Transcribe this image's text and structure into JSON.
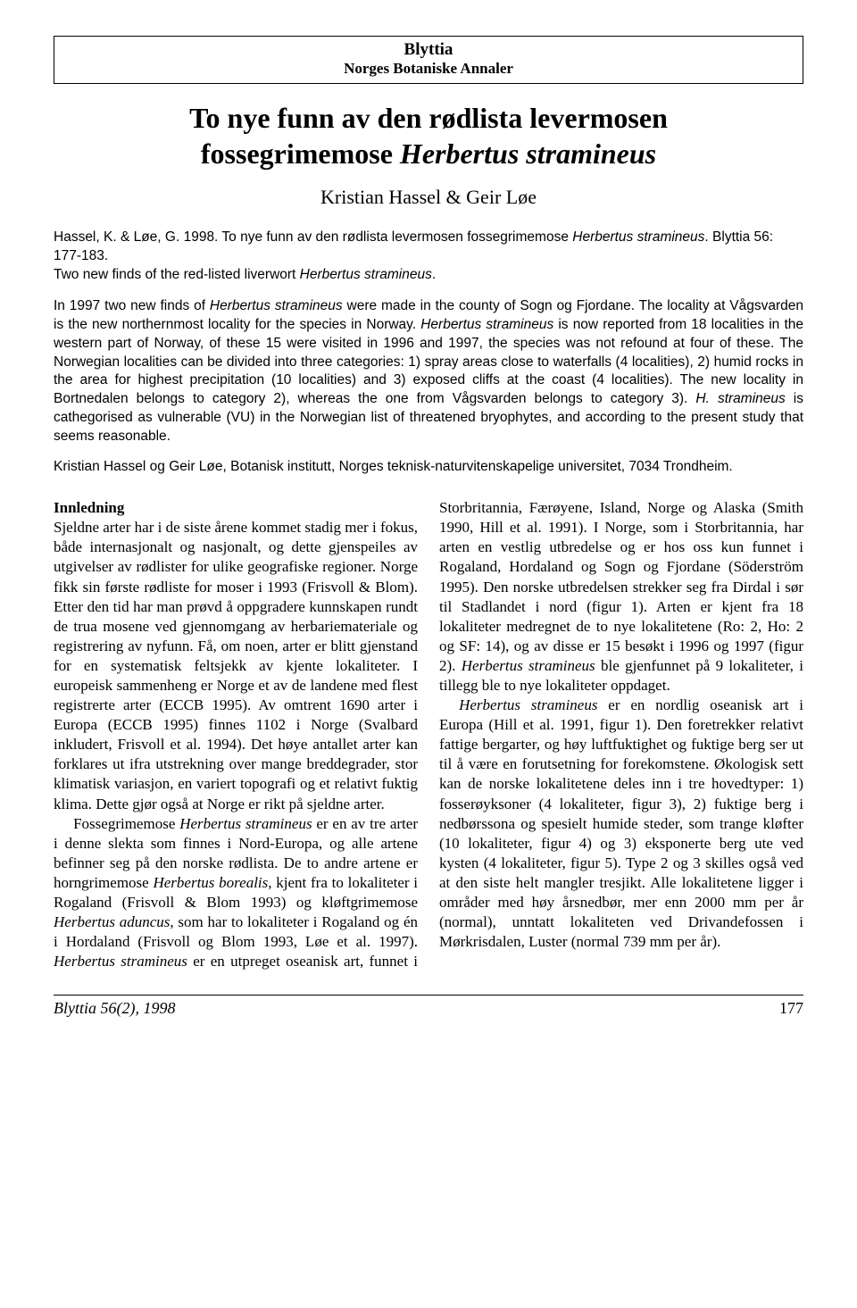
{
  "journal": {
    "name": "Blyttia",
    "subtitle": "Norges Botaniske Annaler"
  },
  "article": {
    "title_line1": "To nye funn av den rødlista levermosen",
    "title_line2_pre": "fossegrimemose ",
    "title_line2_italic": "Herbertus stramineus",
    "authors": "Kristian Hassel & Geir Løe"
  },
  "citation": {
    "p1_pre": "Hassel, K. & Løe, G. 1998. To nye funn av den rødlista levermosen fossegrimemose ",
    "p1_it": "Herbertus stramineus",
    "p1_post": ". Blyttia 56: 177-183.",
    "p2_pre": "Two new finds of the red-listed liverwort ",
    "p2_it": "Herbertus stramineus",
    "p2_post": "."
  },
  "abstract": {
    "s1_pre": "In 1997 two new finds of ",
    "s1_it1": "Herbertus stramineus",
    "s1_mid": " were made in the county of Sogn og Fjordane. The locality at Vågsvarden is the new northernmost locality for the species in Norway. ",
    "s1_it2": "Herbertus stramineus",
    "s1_post": " is now reported from 18 localities in the western part of Norway, of these 15 were visited in 1996 and 1997, the species was not refound at four of these. The Norwegian localities can be divided into three categories: 1) spray areas close to waterfalls (4 localities), 2) humid rocks in the area for highest precipitation (10 localities) and 3) exposed cliffs at the coast (4 localities). The new locality in Bortnedalen belongs to category 2), whereas the one from Vågsvarden belongs to category 3). ",
    "s1_it3": "H. stramineus",
    "s1_end": " is cathegorised as vulnerable (VU) in the Norwegian list of threatened bryophytes, and according to the present study that seems reasonable."
  },
  "affiliation": "Kristian Hassel og Geir Løe, Botanisk institutt, Norges teknisk-naturvitenskapelige universitet, 7034 Trondheim.",
  "body": {
    "heading": "Innledning",
    "p1": "Sjeldne arter har i de siste årene kommet stadig mer i fokus, både internasjonalt og nasjonalt, og dette gjenspeiles av utgivelser av rødlister for ulike geografiske regioner. Norge fikk sin første rødliste for moser i 1993 (Frisvoll & Blom). Etter den tid har man prøvd å oppgradere kunnskapen rundt de trua mosene ved gjennomgang av herbariemateriale og registrering av nyfunn. Få, om noen, arter er blitt gjenstand for en systematisk feltsjekk av kjente lokaliteter. I europeisk sammenheng er Norge et av de landene med flest registrerte arter (ECCB 1995). Av omtrent 1690 arter i Europa (ECCB 1995) finnes 1102 i Norge (Svalbard inkludert, Frisvoll et al. 1994). Det høye antallet arter kan forklares ut ifra utstrekning over mange breddegrader, stor klimatisk variasjon, en variert topografi og et relativt fuktig klima. Dette gjør også at Norge er rikt på sjeldne arter.",
    "p2_pre": "Fossegrimemose ",
    "p2_it1": "Herbertus stramineus",
    "p2_mid1": " er en av tre arter i denne slekta som finnes i Nord-Europa, og alle artene befinner seg på den norske rødlista. De to andre artene er horngrimemose ",
    "p2_it2": "Herbertus borealis",
    "p2_mid2": ", kjent fra to lokaliteter i Rogaland (Frisvoll & Blom 1993) og kløftgrimemose ",
    "p2_it3": "Herbertus aduncus",
    "p2_mid3": ", som har to lokaliteter i Rogaland og én i Hordaland (Frisvoll og Blom 1993, Løe et al. 1997). ",
    "p2_it4": "Herbertus stramineus",
    "p2_mid4": " er en utpreget oseanisk art, funnet i Storbritannia, Færøyene, Island, Norge og Alaska (Smith 1990, Hill et al. 1991). I Norge, som i Storbritannia, har arten en vestlig utbredelse og er hos oss kun funnet i Rogaland, Hordaland og Sogn og Fjordane (Söderström 1995). Den norske utbredelsen strekker seg fra Dirdal i sør til Stadlandet i nord (figur 1). Arten er kjent fra 18 lokaliteter medregnet de to nye lokalitetene (Ro: 2, Ho: 2 og SF: 14), og av disse er 15 besøkt i 1996 og 1997 (figur 2). ",
    "p2_it5": "Herbertus stramineus",
    "p2_end": " ble gjenfunnet på 9 lokaliteter, i tillegg ble to nye lokaliteter oppdaget.",
    "p3_it1": "Herbertus stramineus",
    "p3_text": " er en nordlig oseanisk art i Europa (Hill et al. 1991, figur 1). Den foretrekker relativt fattige bergarter, og høy luftfuktighet og fuktige berg ser ut til å være en forutsetning for forekomstene. Økologisk sett kan de norske lokalitetene deles inn i tre hovedtyper: 1) fosserøyksoner (4 lokaliteter, figur 3), 2) fuktige berg i nedbørssona og spesielt humide steder, som trange kløfter (10 lokaliteter, figur 4) og 3) eksponerte berg ute ved kysten (4 lokaliteter, figur 5). Type 2 og 3 skilles også ved at den siste helt mangler tresjikt. Alle lokalitetene ligger i områder med høy årsnedbør, mer enn 2000 mm per år (normal), unntatt lokaliteten ved Drivandefossen i Mørkrisdalen, Luster (normal 739 mm per år)."
  },
  "footer": {
    "journal_ref": "Blyttia 56(2), 1998",
    "page": "177"
  }
}
